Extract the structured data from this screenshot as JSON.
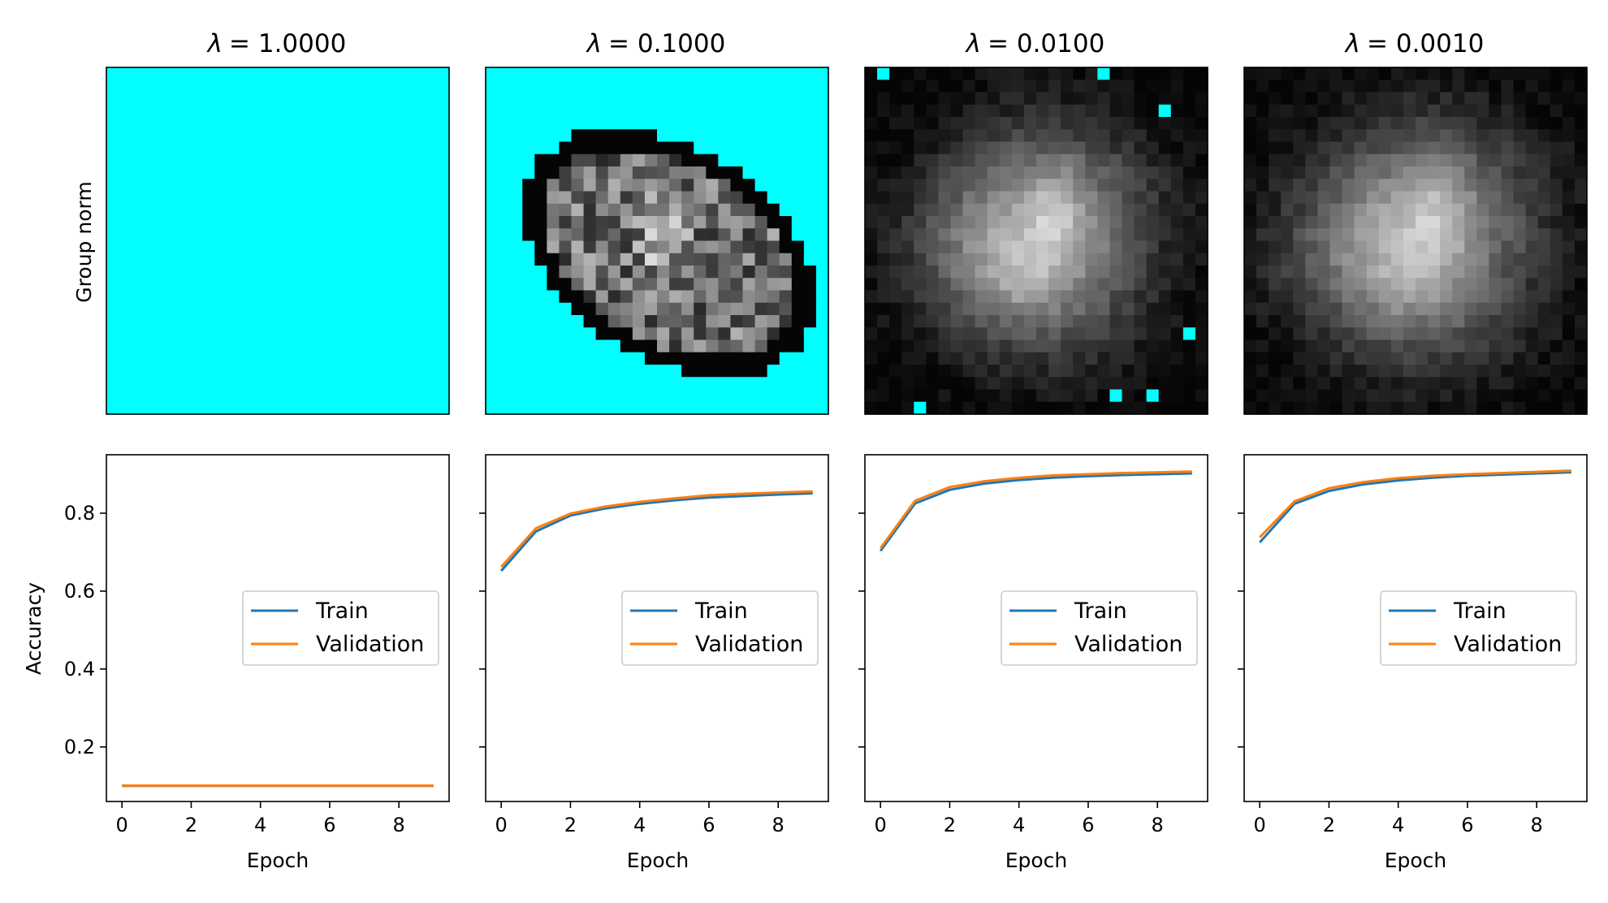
{
  "figure": {
    "row_label_top": "Group norm",
    "legend_entries": [
      "Train",
      "Validation"
    ],
    "colors": {
      "train": "#1f77b4",
      "validation": "#ff7f0e",
      "highlight": "#00ffff"
    }
  },
  "chart_data": [
    {
      "type": "line",
      "title": "λ = 1.0000",
      "title_sym": "λ",
      "title_val": "= 1.0000",
      "xlabel": "Epoch",
      "ylabel": "Accuracy",
      "x": [
        0,
        1,
        2,
        3,
        4,
        5,
        6,
        7,
        8,
        9
      ],
      "xticks": [
        "0",
        "2",
        "4",
        "6",
        "8"
      ],
      "yticks": [
        "0.2",
        "0.4",
        "0.6",
        "0.8"
      ],
      "ylim": [
        0.06,
        0.95
      ],
      "grid": false,
      "legend": "center-right",
      "image": "fully cyan mask",
      "series": [
        {
          "name": "Train",
          "values": [
            0.1,
            0.1,
            0.1,
            0.1,
            0.1,
            0.1,
            0.1,
            0.1,
            0.1,
            0.1
          ]
        },
        {
          "name": "Validation",
          "values": [
            0.101,
            0.101,
            0.101,
            0.101,
            0.101,
            0.101,
            0.101,
            0.101,
            0.101,
            0.101
          ]
        }
      ]
    },
    {
      "type": "line",
      "title": "λ = 0.1000",
      "title_sym": "λ",
      "title_val": "= 0.1000",
      "xlabel": "Epoch",
      "x": [
        0,
        1,
        2,
        3,
        4,
        5,
        6,
        7,
        8,
        9
      ],
      "xticks": [
        "0",
        "2",
        "4",
        "6",
        "8"
      ],
      "ylim": [
        0.06,
        0.95
      ],
      "grid": false,
      "legend": "center-right",
      "image": "grayscale digit with cyan mask outside",
      "series": [
        {
          "name": "Train",
          "values": [
            0.652,
            0.753,
            0.794,
            0.812,
            0.824,
            0.833,
            0.84,
            0.844,
            0.848,
            0.851
          ]
        },
        {
          "name": "Validation",
          "values": [
            0.662,
            0.761,
            0.799,
            0.817,
            0.829,
            0.838,
            0.846,
            0.85,
            0.853,
            0.856
          ]
        }
      ]
    },
    {
      "type": "line",
      "title": "λ = 0.0100",
      "title_sym": "λ",
      "title_val": "= 0.0100",
      "xlabel": "Epoch",
      "x": [
        0,
        1,
        2,
        3,
        4,
        5,
        6,
        7,
        8,
        9
      ],
      "xticks": [
        "0",
        "2",
        "4",
        "6",
        "8"
      ],
      "ylim": [
        0.06,
        0.95
      ],
      "grid": false,
      "legend": "center-right",
      "image": "grayscale blob with a few cyan pixels",
      "series": [
        {
          "name": "Train",
          "values": [
            0.703,
            0.825,
            0.86,
            0.876,
            0.885,
            0.891,
            0.895,
            0.898,
            0.9,
            0.902
          ]
        },
        {
          "name": "Validation",
          "values": [
            0.71,
            0.832,
            0.867,
            0.882,
            0.891,
            0.897,
            0.9,
            0.903,
            0.905,
            0.907
          ]
        }
      ]
    },
    {
      "type": "line",
      "title": "λ = 0.0010",
      "title_sym": "λ",
      "title_val": "= 0.0010",
      "xlabel": "Epoch",
      "x": [
        0,
        1,
        2,
        3,
        4,
        5,
        6,
        7,
        8,
        9
      ],
      "xticks": [
        "0",
        "2",
        "4",
        "6",
        "8"
      ],
      "ylim": [
        0.06,
        0.95
      ],
      "grid": false,
      "legend": "center-right",
      "image": "grayscale blob",
      "series": [
        {
          "name": "Train",
          "values": [
            0.725,
            0.824,
            0.857,
            0.874,
            0.884,
            0.891,
            0.896,
            0.899,
            0.902,
            0.905
          ]
        },
        {
          "name": "Validation",
          "values": [
            0.738,
            0.83,
            0.864,
            0.88,
            0.89,
            0.896,
            0.9,
            0.903,
            0.906,
            0.909
          ]
        }
      ]
    }
  ]
}
